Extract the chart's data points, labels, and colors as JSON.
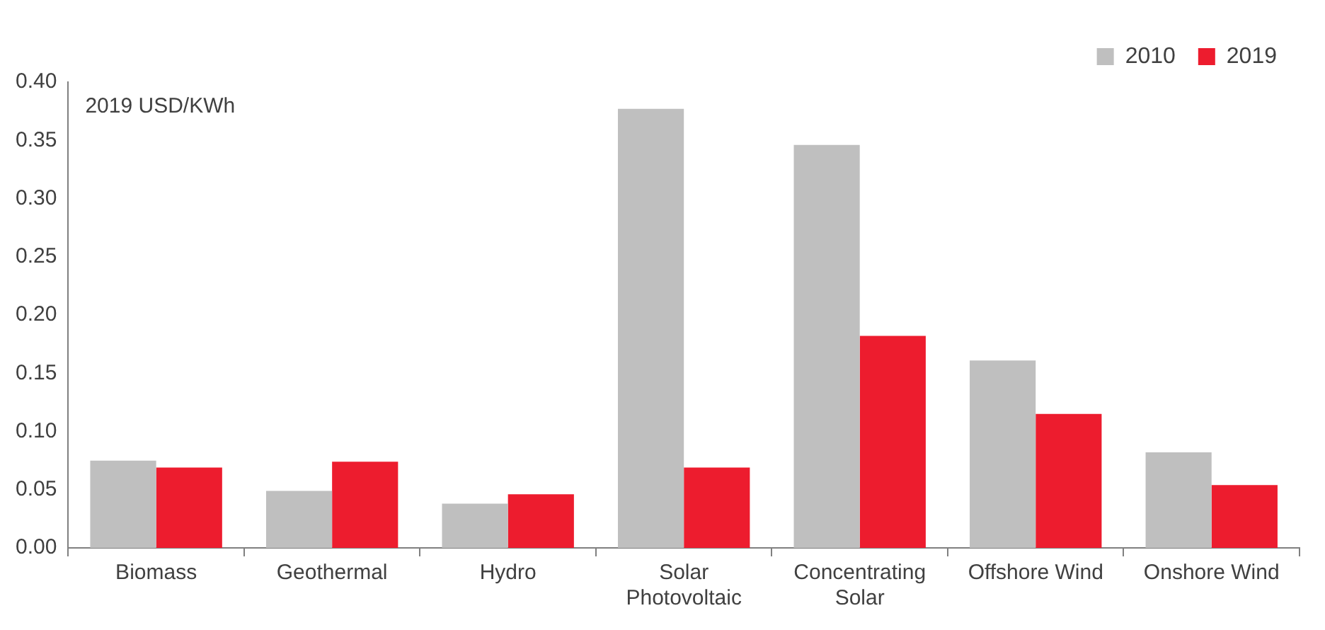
{
  "chart_data": {
    "type": "bar",
    "categories": [
      "Biomass",
      "Geothermal",
      "Hydro",
      "Solar Photovoltaic",
      "Concentrating Solar",
      "Offshore Wind",
      "Onshore Wind"
    ],
    "series": [
      {
        "name": "2010",
        "color": "#bfbfbf",
        "values": [
          0.075,
          0.049,
          0.038,
          0.377,
          0.346,
          0.161,
          0.082
        ]
      },
      {
        "name": "2019",
        "color": "#ed1c2e",
        "values": [
          0.069,
          0.074,
          0.046,
          0.069,
          0.182,
          0.115,
          0.054
        ]
      }
    ],
    "ylim": [
      0,
      0.4
    ],
    "yticks": [
      {
        "value": 0,
        "label": "0.00"
      },
      {
        "value": 0.05,
        "label": "0.05"
      },
      {
        "value": 0.1,
        "label": "0.10"
      },
      {
        "value": 0.15,
        "label": "0.15"
      },
      {
        "value": 0.2,
        "label": "0.20"
      },
      {
        "value": 0.25,
        "label": "0.25"
      },
      {
        "value": 0.3,
        "label": "0.30"
      },
      {
        "value": 0.35,
        "label": "0.35"
      },
      {
        "value": 0.4,
        "label": "0.40"
      }
    ],
    "annotations": [
      "2019 USD/KWh"
    ],
    "legend": "top right",
    "grid": false
  }
}
